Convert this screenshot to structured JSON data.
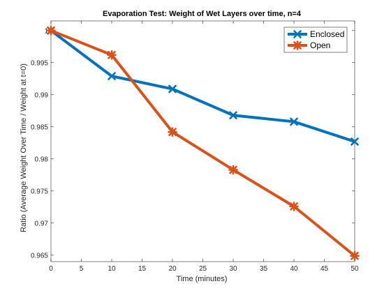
{
  "chart_data": {
    "type": "line",
    "title": "Evaporation Test: Weight of Wet Layers over time, n=4",
    "xlabel": "Time (minutes)",
    "ylabel": "Ratio (Average Weight Over Time / Weight at t=0)",
    "xlim": [
      0,
      50
    ],
    "ylim": [
      0.964,
      1.0015
    ],
    "xticks": [
      0,
      5,
      10,
      15,
      20,
      25,
      30,
      35,
      40,
      45,
      50
    ],
    "yticks": [
      0.965,
      0.97,
      0.975,
      0.98,
      0.985,
      0.99,
      0.995,
      1
    ],
    "x": [
      0,
      10,
      20,
      30,
      40,
      50
    ],
    "grid": false,
    "legend_position": "top-right",
    "series": [
      {
        "name": "Enclosed",
        "color": "#0072BD",
        "marker": "x",
        "values": [
          1.0,
          0.9929,
          0.9909,
          0.9868,
          0.9858,
          0.9827
        ]
      },
      {
        "name": "Open",
        "color": "#D95319",
        "marker": "asterisk",
        "values": [
          1.0,
          0.9962,
          0.9842,
          0.9783,
          0.9726,
          0.9649
        ]
      }
    ]
  }
}
